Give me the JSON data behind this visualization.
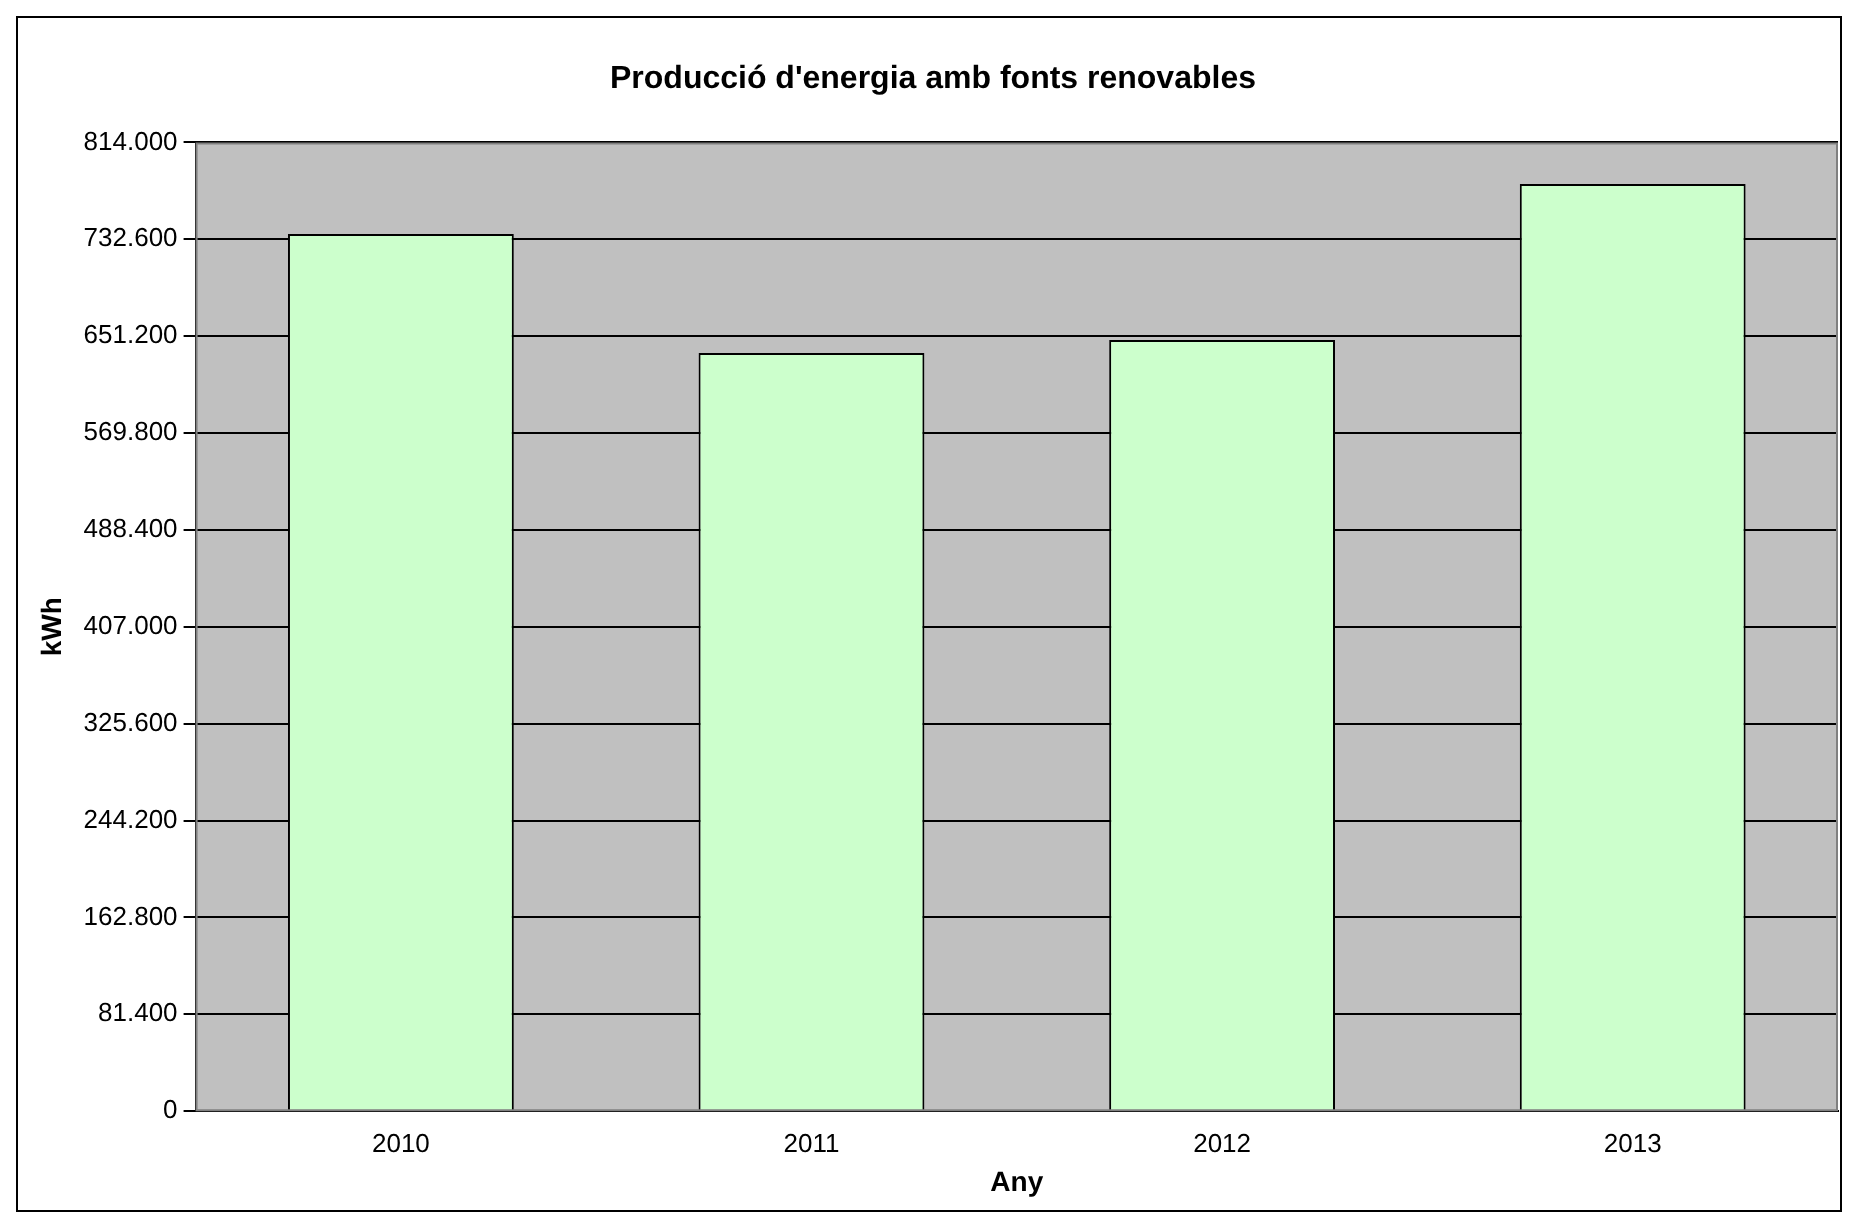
{
  "chart_data": {
    "type": "bar",
    "title": "Producció d'energia amb fonts renovables",
    "xlabel": "Any",
    "ylabel": "kWh",
    "categories": [
      "2010",
      "2011",
      "2012",
      "2013"
    ],
    "values": [
      737000,
      637000,
      648000,
      779000
    ],
    "color": "#ccffcc",
    "ylim": [
      0,
      814000
    ],
    "yticks": [
      0,
      {
        "value": 81400,
        "label": "81.400"
      },
      {
        "value": 162800,
        "label": "162.800"
      },
      {
        "value": 244200,
        "label": "244.200"
      },
      {
        "value": 325600,
        "label": "325.600"
      },
      {
        "value": 407000,
        "label": "407.000"
      },
      {
        "value": 488400,
        "label": "488.400"
      },
      {
        "value": 569800,
        "label": "569.800"
      },
      {
        "value": 651200,
        "label": "651.200"
      },
      {
        "value": 732600,
        "label": "732.600"
      },
      {
        "value": 814000,
        "label": "814.000"
      }
    ],
    "grid": "y",
    "legend": false
  }
}
